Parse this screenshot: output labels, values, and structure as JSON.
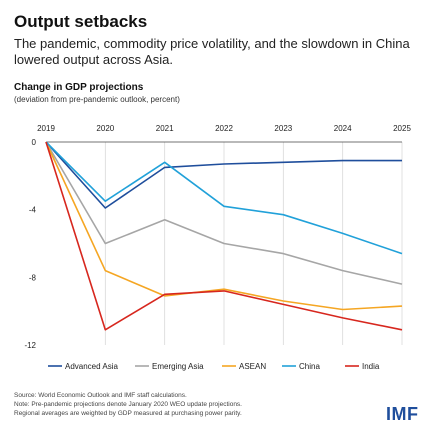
{
  "header": {
    "title": "Output setbacks",
    "subtitle": "The pandemic, commodity price volatility, and the slowdown in China lowered output across Asia."
  },
  "chart_data": {
    "type": "line",
    "title": "Change in GDP projections",
    "subtitle": "(deviation from pre-pandemic outlook, percent)",
    "x": [
      "2019",
      "2020",
      "2021",
      "2022",
      "2023",
      "2024",
      "2025"
    ],
    "y_ticks": [
      "0",
      "-4",
      "-8",
      "-12"
    ],
    "ylim": [
      -12,
      0
    ],
    "grid": "vertical",
    "legend_position": "bottom",
    "series": [
      {
        "name": "Advanced Asia",
        "color": "#1f4e9c",
        "values": [
          0,
          -3.9,
          -1.5,
          -1.3,
          -1.2,
          -1.1,
          -1.1
        ]
      },
      {
        "name": "Emerging Asia",
        "color": "#a6a6a6",
        "values": [
          0,
          -6.0,
          -4.6,
          -6.0,
          -6.6,
          -7.6,
          -8.4
        ]
      },
      {
        "name": "ASEAN",
        "color": "#f5a623",
        "values": [
          0,
          -7.6,
          -9.1,
          -8.7,
          -9.4,
          -9.9,
          -9.7
        ]
      },
      {
        "name": "China",
        "color": "#21a1d9",
        "values": [
          0,
          -3.5,
          -1.2,
          -3.8,
          -4.3,
          -5.4,
          -6.6
        ]
      },
      {
        "name": "India",
        "color": "#d7271e",
        "values": [
          0,
          -11.1,
          -9.0,
          -8.8,
          -9.6,
          -10.4,
          -11.1
        ]
      }
    ]
  },
  "footer": {
    "source": "Source: World Economic Outlook and IMF staff calculations.",
    "note1": "Note: Pre-pandemic projections denote January 2020 WEO update projections.",
    "note2": "Regional averages are weighted by GDP measured at purchasing power parity.",
    "logo": "IMF"
  }
}
